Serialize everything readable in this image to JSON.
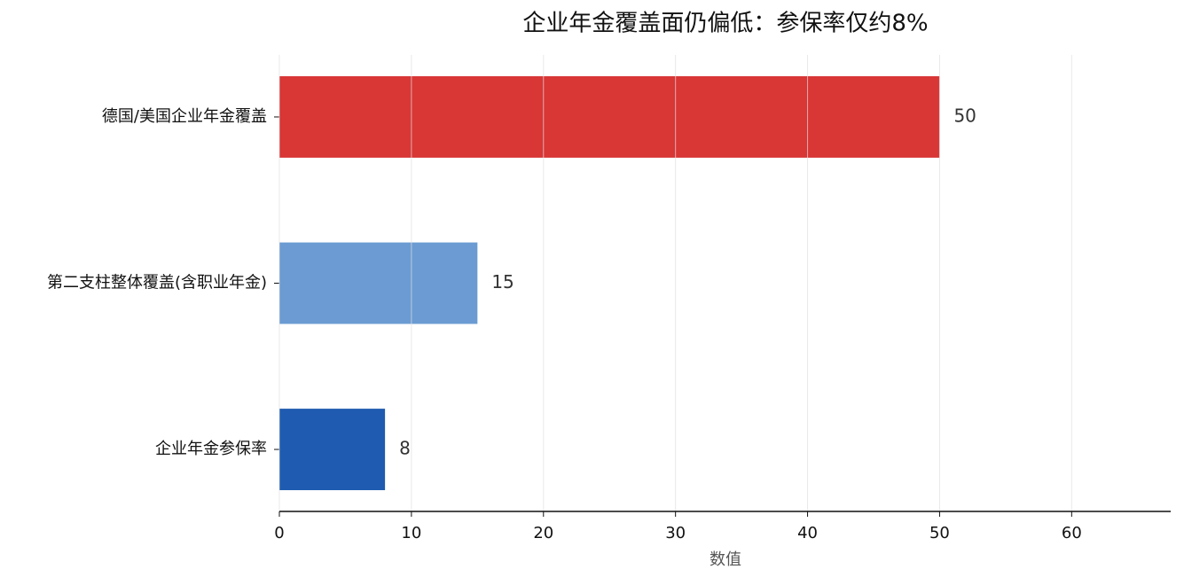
{
  "chart_data": {
    "type": "barh",
    "title": "企业年金覆盖面仍偏低：参保率仅约8%",
    "xlabel": "数值",
    "categories": [
      "德国/美国企业年金覆盖",
      "第二支柱整体覆盖(含职业年金)",
      "企业年金参保率"
    ],
    "values": [
      50,
      15,
      8
    ],
    "colors": [
      "#d93636",
      "#6b9bd2",
      "#1f5bb0"
    ],
    "xlim": [
      0,
      67.5
    ],
    "xticks": [
      0,
      10,
      20,
      30,
      40,
      50,
      60
    ],
    "grid": true
  }
}
